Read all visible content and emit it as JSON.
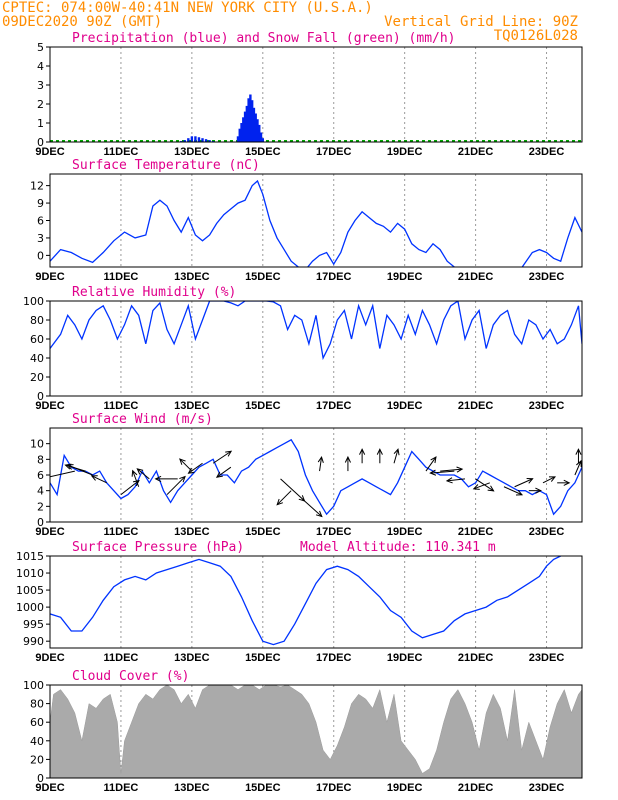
{
  "header": {
    "line1": "CPTEC:  074:00W-40:41N  NEW YORK CITY (U.S.A.)",
    "line2_left": "09DEC2020 90Z (GMT)",
    "line2_right": "Vertical Grid Line: 90Z",
    "line3_right": "TQ0126L028"
  },
  "colors": {
    "precip": "#0022ee",
    "snow": "#00aa00",
    "line": "#0033ff",
    "cloud": "#aaaaaa",
    "header": "#ff8c00",
    "title": "#e0008c"
  },
  "chart_data": [
    {
      "id": "precip",
      "type": "bar",
      "title": "Precipitation (blue) and Snow Fall (green) (mm/h)",
      "x_ticks": [
        "9DEC",
        "11DEC",
        "13DEC",
        "15DEC",
        "17DEC",
        "19DEC",
        "21DEC",
        "23DEC"
      ],
      "ylim": [
        0,
        5
      ],
      "y_ticks": [
        "0",
        "1",
        "2",
        "3",
        "4",
        "5"
      ],
      "series": [
        {
          "day": [
            12.7,
            12.8,
            12.9,
            13.0,
            13.1,
            13.2,
            13.3,
            13.4,
            13.5,
            13.6,
            14.3,
            14.35,
            14.4,
            14.45,
            14.5,
            14.55,
            14.6,
            14.65,
            14.7,
            14.75,
            14.8,
            14.85,
            14.9,
            14.95,
            15.0
          ],
          "values": [
            0.05,
            0.1,
            0.2,
            0.3,
            0.3,
            0.25,
            0.2,
            0.15,
            0.1,
            0.05,
            0.3,
            0.7,
            1.0,
            1.3,
            1.6,
            1.9,
            2.3,
            2.5,
            2.2,
            1.8,
            1.5,
            1.2,
            0.9,
            0.5,
            0.2
          ]
        }
      ]
    },
    {
      "id": "temperature",
      "type": "line",
      "title": "Surface Temperature (nC)",
      "x_ticks": [
        "9DEC",
        "11DEC",
        "13DEC",
        "15DEC",
        "17DEC",
        "19DEC",
        "21DEC",
        "23DEC"
      ],
      "ylim": [
        -2,
        14
      ],
      "y_ticks": [
        "0",
        "3",
        "6",
        "9",
        "12"
      ],
      "x": [
        9.0,
        9.3,
        9.6,
        9.9,
        10.2,
        10.5,
        10.8,
        11.1,
        11.4,
        11.7,
        11.9,
        12.1,
        12.3,
        12.5,
        12.7,
        12.9,
        13.1,
        13.3,
        13.5,
        13.7,
        13.9,
        14.1,
        14.3,
        14.5,
        14.7,
        14.85,
        15.0,
        15.2,
        15.4,
        15.6,
        15.8,
        16.0,
        16.2,
        16.4,
        16.6,
        16.8,
        17.0,
        17.2,
        17.4,
        17.6,
        17.8,
        18.0,
        18.2,
        18.4,
        18.6,
        18.8,
        19.0,
        19.2,
        19.4,
        19.6,
        19.8,
        20.0,
        20.2,
        20.4,
        20.6,
        20.8,
        21.0,
        21.4,
        21.8,
        22.2,
        22.6,
        22.8,
        23.0,
        23.2,
        23.4,
        23.6,
        23.8,
        24.0
      ],
      "values": [
        -1.0,
        1.0,
        0.5,
        -0.5,
        -1.2,
        0.5,
        2.5,
        4.0,
        3.0,
        3.5,
        8.5,
        9.5,
        8.5,
        6.0,
        4.0,
        6.5,
        3.5,
        2.5,
        3.5,
        5.5,
        7.0,
        8.0,
        9.0,
        9.5,
        12.0,
        12.8,
        10.5,
        6.0,
        3.0,
        1.0,
        -1.0,
        -2.0,
        -2.5,
        -1.0,
        0.0,
        0.5,
        -1.5,
        0.5,
        4.0,
        6.0,
        7.5,
        6.5,
        5.5,
        5.0,
        4.0,
        5.5,
        4.5,
        2.0,
        1.0,
        0.5,
        2.0,
        1.0,
        -1.0,
        -2.0,
        -2.5,
        -2.5,
        -3.0,
        -3.0,
        -3.0,
        -3.0,
        0.5,
        1.0,
        0.5,
        -0.5,
        -1.0,
        3.0,
        6.5,
        4.0
      ]
    },
    {
      "id": "humidity",
      "type": "line",
      "title": "Relative Humidity (%)",
      "x_ticks": [
        "9DEC",
        "11DEC",
        "13DEC",
        "15DEC",
        "17DEC",
        "19DEC",
        "21DEC",
        "23DEC"
      ],
      "ylim": [
        0,
        100
      ],
      "y_ticks": [
        "0",
        "20",
        "40",
        "60",
        "80",
        "100"
      ],
      "x": [
        9.0,
        9.3,
        9.5,
        9.7,
        9.9,
        10.1,
        10.3,
        10.5,
        10.7,
        10.9,
        11.1,
        11.3,
        11.5,
        11.7,
        11.9,
        12.1,
        12.3,
        12.5,
        12.7,
        12.9,
        13.1,
        13.3,
        13.5,
        13.7,
        13.9,
        14.1,
        14.3,
        14.5,
        14.7,
        14.9,
        15.1,
        15.3,
        15.5,
        15.7,
        15.9,
        16.1,
        16.3,
        16.5,
        16.7,
        16.9,
        17.1,
        17.3,
        17.5,
        17.7,
        17.9,
        18.1,
        18.3,
        18.5,
        18.7,
        18.9,
        19.1,
        19.3,
        19.5,
        19.7,
        19.9,
        20.1,
        20.3,
        20.5,
        20.7,
        20.9,
        21.1,
        21.3,
        21.5,
        21.7,
        21.9,
        22.1,
        22.3,
        22.5,
        22.7,
        22.9,
        23.1,
        23.3,
        23.5,
        23.7,
        23.9,
        24.0
      ],
      "values": [
        50,
        65,
        85,
        75,
        60,
        80,
        90,
        95,
        80,
        60,
        75,
        95,
        85,
        55,
        90,
        98,
        70,
        55,
        75,
        95,
        60,
        80,
        100,
        100,
        100,
        98,
        95,
        100,
        100,
        100,
        100,
        99,
        95,
        70,
        85,
        80,
        55,
        85,
        40,
        55,
        80,
        90,
        60,
        95,
        75,
        95,
        50,
        85,
        75,
        60,
        85,
        65,
        90,
        75,
        55,
        80,
        95,
        100,
        60,
        80,
        90,
        50,
        75,
        85,
        90,
        65,
        55,
        80,
        75,
        60,
        70,
        55,
        60,
        75,
        95,
        55
      ]
    },
    {
      "id": "wind",
      "type": "line",
      "title": "Surface Wind (m/s)",
      "x_ticks": [
        "9DEC",
        "11DEC",
        "13DEC",
        "15DEC",
        "17DEC",
        "19DEC",
        "21DEC",
        "23DEC"
      ],
      "ylim": [
        0,
        12
      ],
      "y_ticks": [
        "0",
        "2",
        "4",
        "6",
        "8",
        "10"
      ],
      "x": [
        9.0,
        9.2,
        9.4,
        9.6,
        9.8,
        10.0,
        10.2,
        10.4,
        10.6,
        10.8,
        11.0,
        11.2,
        11.4,
        11.6,
        11.8,
        12.0,
        12.2,
        12.4,
        12.6,
        12.8,
        13.0,
        13.2,
        13.4,
        13.6,
        13.8,
        14.0,
        14.2,
        14.4,
        14.6,
        14.8,
        15.0,
        15.2,
        15.4,
        15.6,
        15.8,
        16.0,
        16.2,
        16.4,
        16.6,
        16.8,
        17.0,
        17.2,
        17.4,
        17.6,
        17.8,
        18.0,
        18.2,
        18.4,
        18.6,
        18.8,
        19.0,
        19.2,
        19.4,
        19.6,
        19.8,
        20.0,
        20.2,
        20.4,
        20.6,
        20.8,
        21.0,
        21.2,
        21.4,
        21.6,
        21.8,
        22.0,
        22.2,
        22.4,
        22.6,
        22.8,
        23.0,
        23.2,
        23.4,
        23.6,
        23.8,
        24.0
      ],
      "values": [
        5,
        3.5,
        8.5,
        7,
        6.5,
        6.5,
        6,
        6.5,
        5,
        4,
        3,
        3.5,
        4.5,
        6.5,
        5,
        6.5,
        4,
        2.5,
        4,
        5,
        6,
        7,
        7.5,
        8,
        6,
        6,
        5,
        6.5,
        7,
        8,
        8.5,
        9,
        9.5,
        10,
        10.5,
        9,
        6,
        4,
        2.5,
        1,
        2,
        4,
        4.5,
        5,
        5.5,
        5,
        4.5,
        4,
        3.5,
        5,
        7,
        9,
        8,
        7,
        6.5,
        6,
        6,
        6,
        5.5,
        4.5,
        5,
        6.5,
        6,
        5.5,
        5,
        4.5,
        4,
        4,
        3.5,
        4,
        3.5,
        1,
        2,
        4,
        5,
        7
      ]
    },
    {
      "id": "pressure",
      "type": "line",
      "title": "Surface Pressure (hPa)",
      "annotation": "Model Altitude: 110.341 m",
      "x_ticks": [
        "9DEC",
        "11DEC",
        "13DEC",
        "15DEC",
        "17DEC",
        "19DEC",
        "21DEC",
        "23DEC"
      ],
      "ylim": [
        988,
        1015
      ],
      "y_ticks": [
        "990",
        "995",
        "1000",
        "1005",
        "1010",
        "1015"
      ],
      "x": [
        9.0,
        9.3,
        9.6,
        9.9,
        10.2,
        10.5,
        10.8,
        11.1,
        11.4,
        11.7,
        12.0,
        12.3,
        12.6,
        12.9,
        13.2,
        13.5,
        13.8,
        14.1,
        14.4,
        14.7,
        15.0,
        15.3,
        15.6,
        15.9,
        16.2,
        16.5,
        16.8,
        17.1,
        17.4,
        17.7,
        18.0,
        18.3,
        18.6,
        18.9,
        19.2,
        19.5,
        19.8,
        20.1,
        20.4,
        20.7,
        21.0,
        21.3,
        21.6,
        21.9,
        22.2,
        22.5,
        22.8,
        23.0,
        23.2,
        23.4
      ],
      "values": [
        998,
        997,
        993,
        993,
        997,
        1002,
        1006,
        1008,
        1009,
        1008,
        1010,
        1011,
        1012,
        1013,
        1014,
        1013,
        1012,
        1009,
        1003,
        996,
        990,
        989,
        990,
        995,
        1001,
        1007,
        1011,
        1012,
        1011,
        1009,
        1006,
        1003,
        999,
        997,
        993,
        991,
        992,
        993,
        996,
        998,
        999,
        1000,
        1002,
        1003,
        1005,
        1007,
        1009,
        1012,
        1014,
        1015
      ]
    },
    {
      "id": "cloud",
      "type": "area",
      "title": "Cloud Cover (%)",
      "x_ticks": [
        "9DEC",
        "11DEC",
        "13DEC",
        "15DEC",
        "17DEC",
        "19DEC",
        "21DEC",
        "23DEC"
      ],
      "ylim": [
        0,
        100
      ],
      "y_ticks": [
        "0",
        "20",
        "40",
        "60",
        "80",
        "100"
      ],
      "x": [
        9.0,
        9.1,
        9.3,
        9.5,
        9.7,
        9.9,
        10.1,
        10.3,
        10.5,
        10.7,
        10.9,
        11.0,
        11.1,
        11.3,
        11.5,
        11.7,
        11.9,
        12.1,
        12.3,
        12.5,
        12.7,
        12.9,
        13.1,
        13.3,
        13.5,
        13.7,
        13.9,
        14.1,
        14.3,
        14.5,
        14.7,
        14.9,
        15.1,
        15.3,
        15.5,
        15.7,
        15.9,
        16.1,
        16.3,
        16.5,
        16.7,
        16.9,
        17.1,
        17.3,
        17.5,
        17.7,
        17.9,
        18.1,
        18.3,
        18.5,
        18.7,
        18.9,
        19.1,
        19.3,
        19.5,
        19.7,
        19.9,
        20.1,
        20.3,
        20.5,
        20.7,
        20.9,
        21.1,
        21.3,
        21.5,
        21.7,
        21.9,
        22.1,
        22.3,
        22.5,
        22.7,
        22.9,
        23.1,
        23.3,
        23.5,
        23.7,
        23.9,
        24.0
      ],
      "values": [
        60,
        90,
        95,
        85,
        70,
        40,
        80,
        75,
        85,
        90,
        60,
        5,
        40,
        60,
        80,
        90,
        85,
        95,
        100,
        95,
        80,
        90,
        75,
        95,
        100,
        100,
        100,
        100,
        95,
        100,
        100,
        95,
        100,
        100,
        98,
        100,
        95,
        90,
        80,
        60,
        30,
        20,
        35,
        55,
        80,
        90,
        85,
        75,
        95,
        60,
        90,
        40,
        30,
        20,
        5,
        10,
        30,
        60,
        85,
        95,
        80,
        60,
        30,
        70,
        90,
        75,
        40,
        95,
        30,
        60,
        40,
        20,
        55,
        80,
        95,
        70,
        90,
        95
      ]
    }
  ]
}
